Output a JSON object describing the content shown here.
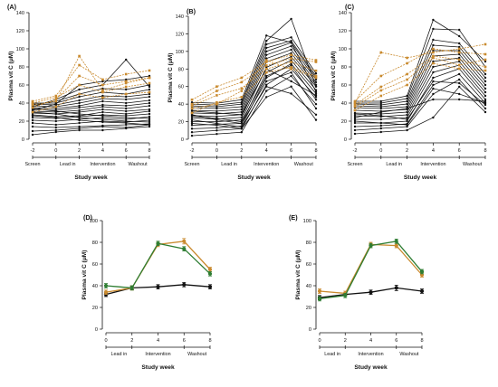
{
  "colors": {
    "black": "#111111",
    "orange": "#c98a2e",
    "green": "#2e7d32",
    "gray": "#5c5c5c"
  },
  "chart_data": [
    {
      "id": "A",
      "type": "line",
      "panel_label": "(A)",
      "ylabel": "Plasma vit C (μM)",
      "xlabel": "Study week",
      "ylim": [
        0,
        140
      ],
      "yticks": [
        0,
        20,
        40,
        60,
        80,
        100,
        120,
        140
      ],
      "x": [
        -2,
        0,
        2,
        4,
        6,
        8
      ],
      "xtick_labels": [
        "-2",
        "0",
        "2",
        "4",
        "6",
        "8"
      ],
      "phases": [
        "Screen",
        "Lead in",
        "Intervention",
        "Washout"
      ],
      "series": [
        {
          "values": [
            5,
            8,
            10,
            10,
            12,
            14
          ]
        },
        {
          "values": [
            9,
            10,
            12,
            14,
            13,
            16
          ]
        },
        {
          "values": [
            14,
            13,
            14,
            15,
            16,
            17
          ]
        },
        {
          "values": [
            18,
            16,
            18,
            20,
            19,
            21
          ]
        },
        {
          "values": [
            21,
            20,
            22,
            24,
            22,
            25
          ]
        },
        {
          "values": [
            24,
            23,
            25,
            27,
            26,
            28
          ]
        },
        {
          "values": [
            27,
            25,
            26,
            30,
            28,
            31
          ]
        },
        {
          "values": [
            29,
            28,
            30,
            33,
            31,
            33
          ]
        },
        {
          "values": [
            31,
            30,
            32,
            36,
            34,
            37
          ]
        },
        {
          "values": [
            33,
            32,
            35,
            38,
            37,
            40
          ]
        },
        {
          "values": [
            35,
            34,
            37,
            42,
            40,
            43
          ]
        },
        {
          "values": [
            37,
            36,
            40,
            45,
            44,
            47
          ]
        },
        {
          "values": [
            39,
            38,
            43,
            48,
            47,
            50
          ]
        },
        {
          "values": [
            40,
            40,
            47,
            52,
            50,
            55
          ]
        },
        {
          "values": [
            38,
            42,
            50,
            56,
            55,
            60
          ]
        },
        {
          "values": [
            36,
            44,
            55,
            60,
            88,
            58
          ]
        },
        {
          "values": [
            32,
            39,
            60,
            64,
            66,
            70
          ]
        },
        {
          "values": [
            30,
            28,
            24,
            22,
            20,
            19
          ]
        },
        {
          "values": [
            26,
            24,
            21,
            19,
            18,
            16
          ]
        },
        {
          "values": [
            34,
            31,
            28,
            26,
            24,
            23
          ]
        }
      ],
      "highlight_series": [
        {
          "values": [
            38,
            42,
            92,
            54,
            62,
            68
          ]
        },
        {
          "values": [
            42,
            48,
            82,
            66,
            72,
            76
          ]
        },
        {
          "values": [
            35,
            44,
            70,
            60,
            64,
            68
          ]
        },
        {
          "values": [
            40,
            46,
            60,
            52,
            58,
            62
          ]
        },
        {
          "values": [
            30,
            36,
            50,
            46,
            50,
            52
          ]
        }
      ]
    },
    {
      "id": "B",
      "type": "line",
      "panel_label": "(B)",
      "ylabel": "Plasma vit C (μM)",
      "xlabel": "Study week",
      "ylim": [
        0,
        140
      ],
      "yticks": [
        0,
        20,
        40,
        60,
        80,
        100,
        120,
        140
      ],
      "x": [
        -2,
        0,
        2,
        4,
        6,
        8
      ],
      "xtick_labels": [
        "-2",
        "0",
        "2",
        "4",
        "6",
        "8"
      ],
      "phases": [
        "Screen",
        "Lead in",
        "Intervention",
        "Washout"
      ],
      "series": [
        {
          "values": [
            4,
            6,
            8,
            55,
            72,
            40
          ]
        },
        {
          "values": [
            8,
            10,
            12,
            62,
            80,
            48
          ]
        },
        {
          "values": [
            12,
            13,
            15,
            70,
            86,
            52
          ]
        },
        {
          "values": [
            16,
            17,
            18,
            76,
            90,
            56
          ]
        },
        {
          "values": [
            20,
            20,
            22,
            82,
            94,
            60
          ]
        },
        {
          "values": [
            24,
            23,
            25,
            88,
            98,
            62
          ]
        },
        {
          "values": [
            27,
            26,
            28,
            92,
            102,
            65
          ]
        },
        {
          "values": [
            30,
            29,
            31,
            96,
            106,
            68
          ]
        },
        {
          "values": [
            33,
            32,
            34,
            100,
            110,
            70
          ]
        },
        {
          "values": [
            36,
            35,
            37,
            104,
            112,
            72
          ]
        },
        {
          "values": [
            38,
            37,
            40,
            108,
            116,
            75
          ]
        },
        {
          "values": [
            40,
            39,
            42,
            112,
            137,
            60
          ]
        },
        {
          "values": [
            42,
            41,
            45,
            118,
            110,
            54
          ]
        },
        {
          "values": [
            22,
            18,
            14,
            60,
            52,
            28
          ]
        },
        {
          "values": [
            18,
            16,
            12,
            48,
            60,
            22
          ]
        },
        {
          "values": [
            28,
            22,
            18,
            66,
            76,
            35
          ]
        },
        {
          "values": [
            26,
            24,
            20,
            72,
            84,
            45
          ]
        },
        {
          "values": [
            32,
            30,
            28,
            80,
            66,
            50
          ]
        }
      ],
      "highlight_series": [
        {
          "values": [
            35,
            40,
            55,
            90,
            80,
            70
          ]
        },
        {
          "values": [
            40,
            55,
            65,
            84,
            92,
            88
          ]
        },
        {
          "values": [
            45,
            60,
            70,
            88,
            96,
            90
          ]
        },
        {
          "values": [
            30,
            42,
            48,
            76,
            82,
            72
          ]
        },
        {
          "values": [
            38,
            50,
            58,
            80,
            88,
            78
          ]
        }
      ]
    },
    {
      "id": "C",
      "type": "line",
      "panel_label": "(C)",
      "ylabel": "Plasma vit C (μM)",
      "xlabel": "Study week",
      "ylim": [
        0,
        140
      ],
      "yticks": [
        0,
        20,
        40,
        60,
        80,
        100,
        120,
        140
      ],
      "x": [
        -2,
        0,
        2,
        4,
        6,
        8
      ],
      "xtick_labels": [
        "-2",
        "0",
        "2",
        "4",
        "6",
        "8"
      ],
      "phases": [
        "Screen",
        "Lead in",
        "Intervention",
        "Washout"
      ],
      "series": [
        {
          "values": [
            6,
            8,
            10,
            24,
            58,
            30
          ]
        },
        {
          "values": [
            10,
            12,
            14,
            50,
            66,
            34
          ]
        },
        {
          "values": [
            14,
            15,
            17,
            60,
            72,
            40
          ]
        },
        {
          "values": [
            18,
            18,
            20,
            68,
            78,
            44
          ]
        },
        {
          "values": [
            22,
            22,
            24,
            74,
            82,
            48
          ]
        },
        {
          "values": [
            26,
            25,
            27,
            80,
            86,
            52
          ]
        },
        {
          "values": [
            29,
            28,
            30,
            86,
            90,
            56
          ]
        },
        {
          "values": [
            32,
            31,
            33,
            92,
            94,
            60
          ]
        },
        {
          "values": [
            35,
            34,
            36,
            98,
            98,
            64
          ]
        },
        {
          "values": [
            37,
            36,
            39,
            104,
            102,
            68
          ]
        },
        {
          "values": [
            39,
            38,
            42,
            110,
            106,
            72
          ]
        },
        {
          "values": [
            40,
            40,
            45,
            122,
            121,
            80
          ]
        },
        {
          "values": [
            42,
            42,
            48,
            132,
            114,
            86
          ]
        },
        {
          "values": [
            20,
            18,
            16,
            56,
            50,
            40
          ]
        },
        {
          "values": [
            24,
            30,
            34,
            44,
            44,
            42
          ]
        },
        {
          "values": [
            28,
            26,
            22,
            64,
            62,
            38
          ]
        }
      ],
      "highlight_series": [
        {
          "values": [
            40,
            96,
            90,
            96,
            100,
            105
          ]
        },
        {
          "values": [
            42,
            70,
            84,
            100,
            96,
            94
          ]
        },
        {
          "values": [
            36,
            54,
            66,
            90,
            82,
            88
          ]
        },
        {
          "values": [
            32,
            48,
            60,
            84,
            78,
            76
          ]
        },
        {
          "values": [
            38,
            58,
            72,
            92,
            88,
            80
          ]
        }
      ]
    },
    {
      "id": "D",
      "type": "line",
      "panel_label": "(D)",
      "ylabel": "Plasma vit C (μM)",
      "xlabel": "Study week",
      "ylim": [
        0,
        100
      ],
      "yticks": [
        0,
        20,
        40,
        60,
        80,
        100
      ],
      "x": [
        0,
        2,
        4,
        6,
        8
      ],
      "xtick_labels": [
        "0",
        "2",
        "4",
        "6",
        "8"
      ],
      "phases": [
        "Lead in",
        "Intervention",
        "Washout"
      ],
      "series": [
        {
          "color_key": "black",
          "values": [
            32,
            38,
            39,
            41,
            39
          ],
          "err": [
            2,
            1.5,
            2,
            2,
            2
          ]
        },
        {
          "color_key": "orange",
          "values": [
            34,
            38,
            78,
            81,
            55
          ],
          "err": [
            2,
            2,
            2,
            2.5,
            2
          ]
        },
        {
          "color_key": "green",
          "values": [
            40,
            38,
            79,
            74,
            51
          ],
          "err": [
            2,
            2,
            2,
            2,
            2
          ]
        }
      ]
    },
    {
      "id": "E",
      "type": "line",
      "panel_label": "(E)",
      "ylabel": "Plasma vit C (μM)",
      "xlabel": "Study week",
      "ylim": [
        0,
        100
      ],
      "yticks": [
        0,
        20,
        40,
        60,
        80,
        100
      ],
      "x": [
        0,
        2,
        4,
        6,
        8
      ],
      "xtick_labels": [
        "0",
        "2",
        "4",
        "6",
        "8"
      ],
      "phases": [
        "Lead in",
        "Intervention",
        "Washout"
      ],
      "series": [
        {
          "color_key": "black",
          "values": [
            29,
            32,
            34,
            38,
            35
          ],
          "err": [
            2,
            1.5,
            2,
            2.5,
            2
          ]
        },
        {
          "color_key": "orange",
          "values": [
            35,
            33,
            78,
            77,
            50
          ],
          "err": [
            2,
            2,
            2,
            2,
            2
          ]
        },
        {
          "color_key": "green",
          "values": [
            28,
            31,
            77,
            81,
            53
          ],
          "err": [
            2,
            2,
            2,
            2,
            2
          ]
        }
      ]
    }
  ]
}
